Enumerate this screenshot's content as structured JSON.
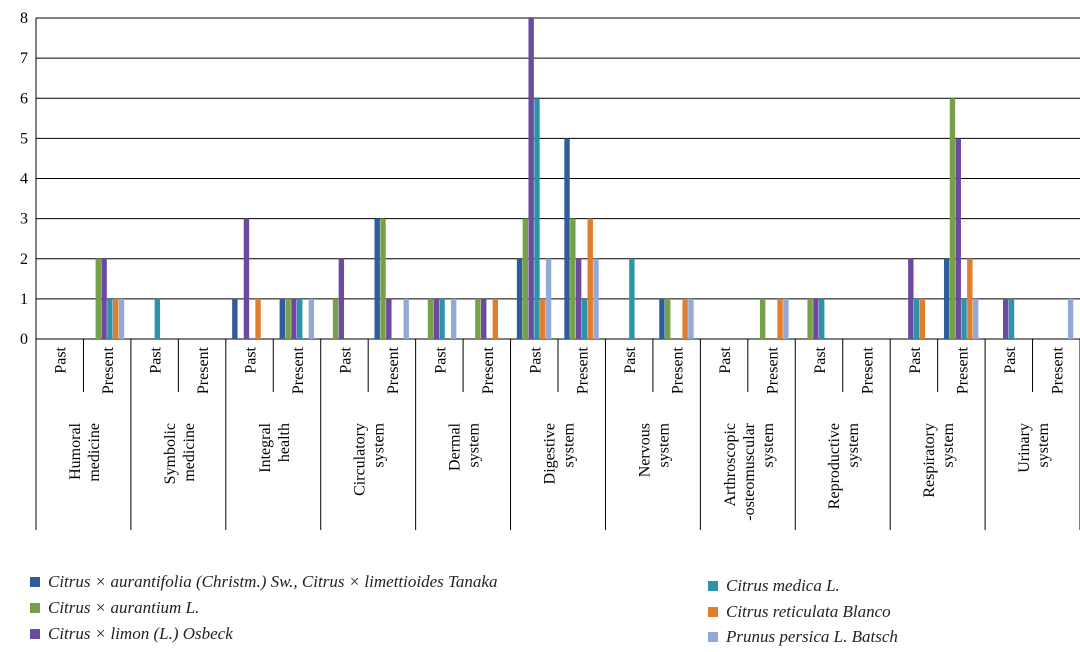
{
  "chart_data": {
    "type": "bar",
    "title": "",
    "xlabel": "",
    "ylabel": "",
    "ylim": [
      0,
      8
    ],
    "yticks": [
      "0",
      "1",
      "2",
      "3",
      "4",
      "5",
      "6",
      "7",
      "8"
    ],
    "grid": "horizontal",
    "legend_position": "bottom",
    "groups": [
      {
        "label": [
          "Humoral",
          "medicine"
        ],
        "periods": [
          "Past",
          "Present"
        ]
      },
      {
        "label": [
          "Symbolic",
          "medicine"
        ],
        "periods": [
          "Past",
          "Present"
        ]
      },
      {
        "label": [
          "Integral",
          "health"
        ],
        "periods": [
          "Past",
          "Present"
        ]
      },
      {
        "label": [
          "Circulatory",
          "system"
        ],
        "periods": [
          "Past",
          "Present"
        ]
      },
      {
        "label": [
          "Dermal",
          "system"
        ],
        "periods": [
          "Past",
          "Present"
        ]
      },
      {
        "label": [
          "Digestive",
          "system"
        ],
        "periods": [
          "Past",
          "Present"
        ]
      },
      {
        "label": [
          "Nervous",
          "system"
        ],
        "periods": [
          "Past",
          "Present"
        ]
      },
      {
        "label": [
          "Arthroscopic",
          "-osteomuscular",
          "system"
        ],
        "periods": [
          "Past",
          "Present"
        ]
      },
      {
        "label": [
          "Reproductive",
          "system"
        ],
        "periods": [
          "Past",
          "Present"
        ]
      },
      {
        "label": [
          "Respiratory",
          "system"
        ],
        "periods": [
          "Past",
          "Present"
        ]
      },
      {
        "label": [
          "Urinary",
          "system"
        ],
        "periods": [
          "Past",
          "Present"
        ]
      }
    ],
    "categories": [
      "Humoral medicine Past",
      "Humoral medicine Present",
      "Symbolic medicine Past",
      "Symbolic medicine Present",
      "Integral health Past",
      "Integral health Present",
      "Circulatory system Past",
      "Circulatory system Present",
      "Dermal system Past",
      "Dermal system Present",
      "Digestive system Past",
      "Digestive system Present",
      "Nervous system Past",
      "Nervous system Present",
      "Arthroscopic -osteomuscular system Past",
      "Arthroscopic -osteomuscular system Present",
      "Reproductive system Past",
      "Reproductive system Present",
      "Respiratory system Past",
      "Respiratory system Present",
      "Urinary system Past",
      "Urinary system Present"
    ],
    "series": [
      {
        "name": "Citrus × aurantifolia (Christm.) Sw., Citrus × limettioides Tanaka",
        "color": "#2e5d9a",
        "values": [
          0,
          0,
          0,
          0,
          1,
          1,
          0,
          3,
          0,
          0,
          2,
          5,
          0,
          1,
          0,
          0,
          0,
          0,
          0,
          2,
          0,
          0
        ]
      },
      {
        "name": "Citrus × aurantium L.",
        "color": "#77a04b",
        "values": [
          0,
          2,
          0,
          0,
          0,
          1,
          1,
          3,
          1,
          1,
          3,
          3,
          0,
          1,
          0,
          1,
          1,
          0,
          0,
          6,
          0,
          0
        ]
      },
      {
        "name": "Citrus × limon (L.) Osbeck",
        "color": "#6b4aa0",
        "values": [
          0,
          2,
          0,
          0,
          3,
          1,
          2,
          1,
          1,
          1,
          8,
          2,
          0,
          0,
          0,
          0,
          1,
          0,
          2,
          5,
          1,
          0
        ]
      },
      {
        "name": "Citrus medica L.",
        "color": "#2c93a8",
        "values": [
          0,
          1,
          1,
          0,
          0,
          1,
          0,
          0,
          1,
          0,
          6,
          1,
          2,
          0,
          0,
          0,
          1,
          0,
          1,
          1,
          1,
          0
        ]
      },
      {
        "name": "Citrus reticulata Blanco",
        "color": "#e07d2f",
        "values": [
          0,
          1,
          0,
          0,
          1,
          0,
          0,
          0,
          0,
          1,
          1,
          3,
          0,
          1,
          0,
          1,
          0,
          0,
          1,
          2,
          0,
          0
        ]
      },
      {
        "name": "Prunus persica L. Batsch",
        "color": "#93a9d6",
        "values": [
          0,
          1,
          0,
          0,
          0,
          1,
          0,
          1,
          1,
          0,
          2,
          2,
          0,
          1,
          0,
          1,
          0,
          0,
          0,
          1,
          0,
          1
        ]
      }
    ]
  },
  "legend": {
    "left": [
      {
        "parts": [
          "Citrus × ",
          "aurantifolia",
          " (Christm.) Sw., Citrus × ",
          "limettioides",
          " Tanaka"
        ],
        "text": "Citrus × aurantifolia (Christm.) Sw., Citrus × limettioides Tanaka",
        "color": "#2e5d9a"
      },
      {
        "text": "Citrus × aurantium L.",
        "color": "#77a04b"
      },
      {
        "text": "Citrus × limon (L.) Osbeck",
        "color": "#6b4aa0"
      }
    ],
    "right": [
      {
        "text": "Citrus medica L.",
        "color": "#2c93a8"
      },
      {
        "text": "Citrus reticulata Blanco",
        "color": "#e07d2f"
      },
      {
        "text": "Prunus persica L. Batsch",
        "color": "#93a9d6"
      }
    ]
  }
}
